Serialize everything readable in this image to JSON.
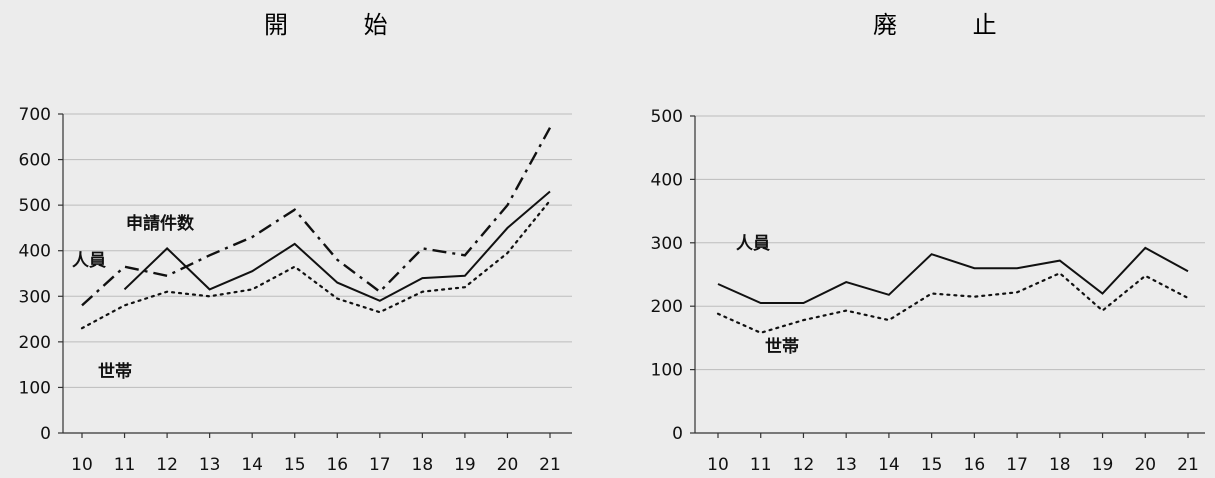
{
  "chart_data": [
    {
      "type": "line",
      "title": "開 始",
      "x": [
        "10",
        "11",
        "12",
        "13",
        "14",
        "15",
        "16",
        "17",
        "18",
        "19",
        "20",
        "21"
      ],
      "ylim": [
        0,
        700
      ],
      "yticks": [
        0,
        100,
        200,
        300,
        400,
        500,
        600,
        700
      ],
      "grid": true,
      "series": [
        {
          "name": "申請件数",
          "style": "dashdot",
          "values": [
            280,
            365,
            345,
            390,
            430,
            490,
            380,
            310,
            405,
            390,
            500,
            670
          ]
        },
        {
          "name": "人員",
          "style": "solid",
          "values": [
            null,
            315,
            405,
            315,
            355,
            415,
            330,
            290,
            340,
            345,
            450,
            530
          ]
        },
        {
          "name": "世帯",
          "style": "dotted",
          "values": [
            230,
            280,
            310,
            300,
            315,
            365,
            295,
            265,
            310,
            320,
            395,
            510
          ]
        }
      ],
      "annotations": [
        "申請件数",
        "人員",
        "世帯"
      ]
    },
    {
      "type": "line",
      "title": "廃 止",
      "x": [
        "10",
        "11",
        "12",
        "13",
        "14",
        "15",
        "16",
        "17",
        "18",
        "19",
        "20",
        "21"
      ],
      "ylim": [
        0,
        500
      ],
      "yticks": [
        0,
        100,
        200,
        300,
        400,
        500
      ],
      "grid": true,
      "series": [
        {
          "name": "人員",
          "style": "solid",
          "values": [
            235,
            205,
            205,
            238,
            218,
            282,
            260,
            260,
            272,
            220,
            292,
            255
          ]
        },
        {
          "name": "世帯",
          "style": "dotted",
          "values": [
            188,
            158,
            178,
            193,
            178,
            220,
            215,
            222,
            252,
            193,
            248,
            213
          ]
        }
      ],
      "annotations": [
        "人員",
        "世帯"
      ]
    }
  ]
}
